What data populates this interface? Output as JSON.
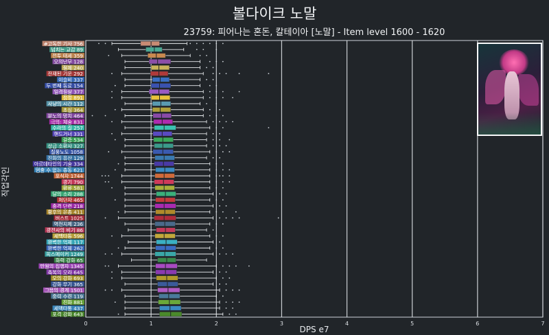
{
  "title": "볼다이크 노말",
  "subtitle": "23759: 피어나는 혼돈, 칼테이아 [노말] - Item level 1600 - 1620",
  "boss_image": {
    "alt": "Boss portrait"
  },
  "chart_data": {
    "type": "boxplot",
    "orientation": "horizontal",
    "xlabel": "DPS e7",
    "ylabel": "직업각인",
    "xlim": [
      0,
      7
    ],
    "xticks": [
      0,
      1,
      2,
      3,
      4,
      5,
      6,
      7
    ],
    "grid": true,
    "categories": [
      {
        "label": "#고독한 기사 756",
        "color": "#c98b74",
        "q1": 0.84,
        "median": 1.0,
        "q3": 1.13,
        "wmin": 0.4,
        "wmax": 1.55,
        "outliers": [
          0.2,
          0.3,
          1.6,
          1.7,
          1.8,
          1.9,
          2.0,
          2.1
        ]
      },
      {
        "label": "넘치는 교감 89",
        "color": "#4aa893",
        "q1": 0.92,
        "median": 1.05,
        "q3": 1.17,
        "wmin": 0.5,
        "wmax": 1.5,
        "outliers": [
          1.7,
          1.8,
          2.0
        ]
      },
      {
        "label": "전투 태세 359",
        "color": "#c9894f",
        "q1": 0.95,
        "median": 1.08,
        "q3": 1.22,
        "wmin": 0.55,
        "wmax": 1.6,
        "outliers": [
          0.35,
          1.75,
          1.85
        ]
      },
      {
        "label": "오의난무 128",
        "color": "#8c4fa8",
        "q1": 0.97,
        "median": 1.1,
        "q3": 1.3,
        "wmin": 0.6,
        "wmax": 1.75,
        "outliers": [
          1.9,
          2.0,
          2.1
        ]
      },
      {
        "label": "절제 240",
        "color": "#c9b45a",
        "q1": 1.0,
        "median": 1.12,
        "q3": 1.28,
        "wmin": 0.6,
        "wmax": 1.75,
        "outliers": [
          1.85,
          1.95
        ]
      },
      {
        "label": "잔재된 기운 292",
        "color": "#b03a3a",
        "q1": 0.99,
        "median": 1.12,
        "q3": 1.26,
        "wmin": 0.55,
        "wmax": 1.8,
        "outliers": [
          0.4,
          1.95,
          2.05,
          2.15,
          2.35,
          2.8
        ]
      },
      {
        "label": "이슬비 337",
        "color": "#3a6fc2",
        "q1": 1.02,
        "median": 1.14,
        "q3": 1.28,
        "wmin": 0.6,
        "wmax": 1.75,
        "outliers": [
          1.85,
          1.95
        ]
      },
      {
        "label": "두 번째 동료 154",
        "color": "#3a52b0",
        "q1": 1.0,
        "median": 1.13,
        "q3": 1.3,
        "wmin": 0.6,
        "wmax": 1.75,
        "outliers": [
          0.45,
          1.9,
          2.0
        ]
      },
      {
        "label": "일격필살 377",
        "color": "#9a5ac2",
        "q1": 0.97,
        "median": 1.12,
        "q3": 1.28,
        "wmin": 0.55,
        "wmax": 1.8,
        "outliers": [
          0.4,
          1.9,
          2.0,
          2.1,
          2.35
        ]
      },
      {
        "label": "점정 891",
        "color": "#e8c23a",
        "q1": 1.0,
        "median": 1.13,
        "q3": 1.29,
        "wmin": 0.55,
        "wmax": 1.8,
        "outliers": [
          0.4,
          1.9,
          2.0,
          2.1,
          2.25
        ]
      },
      {
        "label": "사냥의 시간 112",
        "color": "#5a9ab0",
        "q1": 1.02,
        "median": 1.15,
        "q3": 1.3,
        "wmin": 0.6,
        "wmax": 1.75,
        "outliers": [
          1.85,
          2.0
        ]
      },
      {
        "label": "초심 364",
        "color": "#b0a03a",
        "q1": 1.02,
        "median": 1.14,
        "q3": 1.3,
        "wmin": 0.55,
        "wmax": 1.8,
        "outliers": [
          0.45,
          1.9,
          2.05
        ]
      },
      {
        "label": "분노의 망치 464",
        "color": "#8a4aa8",
        "q1": 1.03,
        "median": 1.16,
        "q3": 1.31,
        "wmin": 0.6,
        "wmax": 1.8,
        "outliers": [
          0.1,
          0.3,
          1.9,
          2.0,
          2.1
        ]
      },
      {
        "label": "극의: 체술 831",
        "color": "#b02ab0",
        "q1": 1.04,
        "median": 1.17,
        "q3": 1.33,
        "wmin": 0.55,
        "wmax": 1.85,
        "outliers": [
          0.4,
          1.95,
          2.05,
          2.15,
          2.25
        ]
      },
      {
        "label": "수라의 길 257",
        "color": "#3ac2b0",
        "q1": 1.05,
        "median": 1.2,
        "q3": 1.38,
        "wmin": 0.6,
        "wmax": 1.9,
        "outliers": [
          2.0,
          2.1,
          2.8
        ]
      },
      {
        "label": "핸드거너 331",
        "color": "#5a4ac2",
        "q1": 1.03,
        "median": 1.17,
        "q3": 1.32,
        "wmin": 0.55,
        "wmax": 1.85,
        "outliers": [
          0.4,
          1.95,
          2.05
        ]
      },
      {
        "label": "갈증 534",
        "color": "#3aa85a",
        "q1": 1.04,
        "median": 1.18,
        "q3": 1.34,
        "wmin": 0.6,
        "wmax": 1.85,
        "outliers": [
          0.45,
          1.95,
          2.05,
          2.2
        ]
      },
      {
        "label": "상급 소환사 327",
        "color": "#3a9a8a",
        "q1": 1.05,
        "median": 1.18,
        "q3": 1.34,
        "wmin": 0.6,
        "wmax": 1.85,
        "outliers": [
          1.95,
          2.05,
          2.15
        ]
      },
      {
        "label": "질풍노도 1058",
        "color": "#3a5ab0",
        "q1": 1.03,
        "median": 1.18,
        "q3": 1.34,
        "wmin": 0.55,
        "wmax": 1.9,
        "outliers": [
          0.35,
          2.0,
          2.1,
          2.2
        ]
      },
      {
        "label": "진화의 유산 129",
        "color": "#3a7ab0",
        "q1": 1.06,
        "median": 1.2,
        "q3": 1.36,
        "wmin": 0.6,
        "wmax": 1.85,
        "outliers": [
          1.95,
          2.05
        ]
      },
      {
        "label": "아르데타인의 기술 334",
        "color": "#4a3aa8",
        "q1": 1.05,
        "median": 1.19,
        "q3": 1.35,
        "wmin": 0.6,
        "wmax": 1.9,
        "outliers": [
          0.5,
          2.0,
          2.1
        ]
      },
      {
        "label": "멈출 수 없는 충동 621",
        "color": "#3a8ac2",
        "q1": 1.07,
        "median": 1.21,
        "q3": 1.36,
        "wmin": 0.6,
        "wmax": 1.9,
        "outliers": [
          0.45,
          2.0,
          2.1,
          2.2
        ]
      },
      {
        "label": "포식자 1744",
        "color": "#d06a3a",
        "q1": 1.06,
        "median": 1.2,
        "q3": 1.36,
        "wmin": 0.55,
        "wmax": 1.9,
        "outliers": [
          0.25,
          0.3,
          0.35,
          2.0,
          2.05,
          2.1,
          2.2
        ]
      },
      {
        "label": "광기 790",
        "color": "#d03a5a",
        "q1": 1.05,
        "median": 1.19,
        "q3": 1.35,
        "wmin": 0.55,
        "wmax": 1.9,
        "outliers": [
          0.3,
          0.35,
          2.0,
          2.1,
          2.2
        ]
      },
      {
        "label": "환류 581",
        "color": "#a8b03a",
        "q1": 1.06,
        "median": 1.2,
        "q3": 1.36,
        "wmin": 0.6,
        "wmax": 1.9,
        "outliers": [
          0.4,
          2.0,
          2.1
        ]
      },
      {
        "label": "달의 소리 288",
        "color": "#3ab07a",
        "q1": 1.08,
        "median": 1.22,
        "q3": 1.38,
        "wmin": 0.6,
        "wmax": 1.95,
        "outliers": [
          2.05,
          2.15
        ]
      },
      {
        "label": "처단자 465",
        "color": "#c23a3a",
        "q1": 1.07,
        "median": 1.21,
        "q3": 1.37,
        "wmin": 0.6,
        "wmax": 1.9,
        "outliers": [
          0.45,
          2.0,
          2.1
        ]
      },
      {
        "label": "충격 단련 218",
        "color": "#a82ab0",
        "q1": 1.06,
        "median": 1.2,
        "q3": 1.38,
        "wmin": 0.6,
        "wmax": 1.95,
        "outliers": [
          2.05,
          2.15
        ]
      },
      {
        "label": "황후의 은총 411",
        "color": "#b08a2a",
        "q1": 1.07,
        "median": 1.21,
        "q3": 1.37,
        "wmin": 0.6,
        "wmax": 1.9,
        "outliers": [
          0.5,
          2.0,
          2.1,
          2.3
        ]
      },
      {
        "label": "버스트 1025",
        "color": "#b02a3a",
        "q1": 1.05,
        "median": 1.2,
        "q3": 1.38,
        "wmin": 0.5,
        "wmax": 1.95,
        "outliers": [
          0.3,
          2.05,
          2.15,
          2.25,
          2.35,
          2.95
        ]
      },
      {
        "label": "역천지체 236",
        "color": "#4a6a8a",
        "q1": 1.06,
        "median": 1.21,
        "q3": 1.37,
        "wmin": 0.6,
        "wmax": 1.9,
        "outliers": [
          2.0,
          2.1
        ]
      },
      {
        "label": "광전사의 비기 86",
        "color": "#c23a5a",
        "q1": 1.08,
        "median": 1.22,
        "q3": 1.37,
        "wmin": 0.65,
        "wmax": 1.85,
        "outliers": [
          1.95
        ]
      },
      {
        "label": "세맥타통 596",
        "color": "#c2a83a",
        "q1": 1.06,
        "median": 1.2,
        "q3": 1.37,
        "wmin": 0.55,
        "wmax": 1.9,
        "outliers": [
          0.4,
          2.0,
          2.1
        ]
      },
      {
        "label": "완벽한 억제 117",
        "color": "#3ab0c2",
        "q1": 1.08,
        "median": 1.23,
        "q3": 1.4,
        "wmin": 0.65,
        "wmax": 1.95,
        "outliers": [
          2.05
        ]
      },
      {
        "label": "완벽한 억제 262",
        "color": "#3a6ac2",
        "q1": 1.07,
        "median": 1.22,
        "q3": 1.38,
        "wmin": 0.6,
        "wmax": 1.9,
        "outliers": [
          0.5,
          2.0,
          2.1
        ]
      },
      {
        "label": "피스메이커 1249",
        "color": "#3aa8a8",
        "q1": 1.06,
        "median": 1.21,
        "q3": 1.38,
        "wmin": 0.55,
        "wmax": 1.95,
        "outliers": [
          0.3,
          0.4,
          2.05,
          2.15,
          2.25
        ]
      },
      {
        "label": "화력 강화 65",
        "color": "#3a8a4a",
        "q1": 1.1,
        "median": 1.24,
        "q3": 1.38,
        "wmin": 0.7,
        "wmax": 1.85,
        "outliers": []
      },
      {
        "label": "만월의 집행자 1345",
        "color": "#a84ac2",
        "q1": 1.07,
        "median": 1.22,
        "q3": 1.4,
        "wmin": 0.5,
        "wmax": 2.0,
        "outliers": [
          0.3,
          0.35,
          2.1,
          2.2,
          2.3,
          2.5
        ]
      },
      {
        "label": "축복의 오라 645",
        "color": "#8a3ab0",
        "q1": 1.07,
        "median": 1.22,
        "q3": 1.39,
        "wmin": 0.55,
        "wmax": 1.95,
        "outliers": [
          0.4,
          2.05,
          2.15
        ]
      },
      {
        "label": "오의 강화 693",
        "color": "#b09a2a",
        "q1": 1.08,
        "median": 1.24,
        "q3": 1.41,
        "wmin": 0.55,
        "wmax": 2.0,
        "outliers": [
          0.4,
          2.1,
          2.2
        ]
      },
      {
        "label": "강화 무기 365",
        "color": "#3a5a9a",
        "q1": 1.1,
        "median": 1.25,
        "q3": 1.41,
        "wmin": 0.6,
        "wmax": 1.95,
        "outliers": [
          2.05,
          2.15
        ]
      },
      {
        "label": "그믐의 경계 1501",
        "color": "#b05ac2",
        "q1": 1.1,
        "median": 1.26,
        "q3": 1.44,
        "wmin": 0.55,
        "wmax": 2.05,
        "outliers": [
          0.3,
          0.4,
          2.15,
          2.25,
          2.35
        ]
      },
      {
        "label": "중력 수련 119",
        "color": "#4a7a9a",
        "q1": 1.12,
        "median": 1.27,
        "q3": 1.44,
        "wmin": 0.6,
        "wmax": 2.0,
        "outliers": [
          2.1
        ]
      },
      {
        "label": "진화 881",
        "color": "#6aa83a",
        "q1": 1.11,
        "median": 1.28,
        "q3": 1.45,
        "wmin": 0.6,
        "wmax": 2.05,
        "outliers": [
          0.45,
          2.15,
          2.25,
          2.35
        ]
      },
      {
        "label": "세맥타통 437",
        "color": "#3a8ac2",
        "q1": 1.13,
        "median": 1.29,
        "q3": 1.46,
        "wmin": 0.6,
        "wmax": 2.05,
        "outliers": [
          2.15,
          2.25
        ]
      },
      {
        "label": "포격 강화 643",
        "color": "#4a8a2a",
        "q1": 1.13,
        "median": 1.3,
        "q3": 1.47,
        "wmin": 0.6,
        "wmax": 2.1,
        "outliers": [
          0.5,
          2.2,
          2.3
        ]
      }
    ]
  }
}
